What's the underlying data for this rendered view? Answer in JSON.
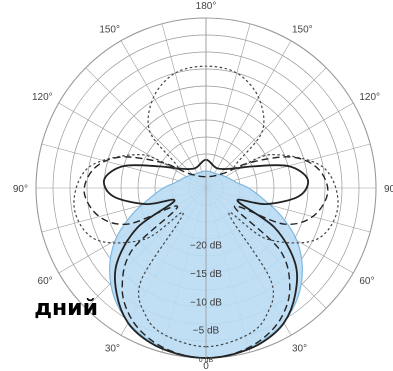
{
  "overlay_text": "дний",
  "chart_data": {
    "type": "polar",
    "angle_labels": [
      {
        "angle": 180,
        "text": "180°"
      },
      {
        "angle": 150,
        "text": "150°"
      },
      {
        "angle": -150,
        "text": "150°"
      },
      {
        "angle": 120,
        "text": "120°"
      },
      {
        "angle": -120,
        "text": "120°"
      },
      {
        "angle": 90,
        "text": "90°"
      },
      {
        "angle": -90,
        "text": "90"
      },
      {
        "angle": 60,
        "text": "60°"
      },
      {
        "angle": -60,
        "text": "60°"
      },
      {
        "angle": 30,
        "text": "30°"
      },
      {
        "angle": -30,
        "text": "30°"
      },
      {
        "angle": 0,
        "text": "0"
      }
    ],
    "db_labels": [
      {
        "db": -20,
        "text": "−20 dB"
      },
      {
        "db": -15,
        "text": "−15 dB"
      },
      {
        "db": -10,
        "text": "−10 dB"
      },
      {
        "db": -5,
        "text": "−5 dB"
      },
      {
        "db": 0,
        "text": "0 dB"
      }
    ],
    "colors": {
      "grid": "#9a9a9a",
      "fill": "#b9dbf3",
      "fill_edge": "#7fb8e0",
      "curve": "#222222"
    },
    "series": [
      {
        "style": "filled",
        "points": [
          [
            0,
            0
          ],
          [
            10,
            -0.3
          ],
          [
            20,
            -1.2
          ],
          [
            30,
            -2.6
          ],
          [
            40,
            -4.8
          ],
          [
            50,
            -7.8
          ],
          [
            60,
            -11.5
          ],
          [
            70,
            -16
          ],
          [
            80,
            -20
          ],
          [
            90,
            -22.5
          ],
          [
            100,
            -24.5
          ],
          [
            120,
            -26
          ],
          [
            150,
            -27
          ],
          [
            180,
            -27
          ],
          [
            -150,
            -27
          ],
          [
            -120,
            -26
          ],
          [
            -100,
            -24.5
          ],
          [
            -90,
            -22.5
          ],
          [
            -80,
            -20
          ],
          [
            -70,
            -16
          ],
          [
            -60,
            -11.5
          ],
          [
            -50,
            -7.8
          ],
          [
            -40,
            -4.8
          ],
          [
            -30,
            -2.6
          ],
          [
            -20,
            -1.2
          ],
          [
            -10,
            -0.3
          ]
        ]
      },
      {
        "style": "solid",
        "points": [
          [
            0,
            0
          ],
          [
            10,
            -0.3
          ],
          [
            20,
            -1
          ],
          [
            30,
            -2.5
          ],
          [
            40,
            -5.5
          ],
          [
            50,
            -9.5
          ],
          [
            60,
            -16
          ],
          [
            68,
            -24
          ],
          [
            75,
            -19
          ],
          [
            85,
            -13.5
          ],
          [
            95,
            -12
          ],
          [
            105,
            -15
          ],
          [
            115,
            -21
          ],
          [
            125,
            -24
          ],
          [
            150,
            -26
          ],
          [
            180,
            -25
          ],
          [
            -150,
            -26
          ],
          [
            -125,
            -24
          ],
          [
            -115,
            -21
          ],
          [
            -105,
            -15
          ],
          [
            -95,
            -12
          ],
          [
            -85,
            -13.5
          ],
          [
            -75,
            -19
          ],
          [
            -68,
            -24
          ],
          [
            -60,
            -16
          ],
          [
            -50,
            -9.5
          ],
          [
            -40,
            -5.5
          ],
          [
            -30,
            -2.5
          ],
          [
            -20,
            -1
          ],
          [
            -10,
            -0.3
          ]
        ]
      },
      {
        "style": "long-dash",
        "points": [
          [
            0,
            0
          ],
          [
            10,
            -0.4
          ],
          [
            20,
            -1.5
          ],
          [
            30,
            -3.5
          ],
          [
            40,
            -7
          ],
          [
            50,
            -13
          ],
          [
            57,
            -24
          ],
          [
            65,
            -15
          ],
          [
            75,
            -10.5
          ],
          [
            88,
            -8.5
          ],
          [
            100,
            -10
          ],
          [
            110,
            -14
          ],
          [
            120,
            -21
          ],
          [
            130,
            -26
          ],
          [
            180,
            -28
          ],
          [
            -130,
            -26
          ],
          [
            -120,
            -21
          ],
          [
            -110,
            -14
          ],
          [
            -100,
            -10
          ],
          [
            -88,
            -8.5
          ],
          [
            -75,
            -10.5
          ],
          [
            -65,
            -15
          ],
          [
            -57,
            -24
          ],
          [
            -50,
            -13
          ],
          [
            -40,
            -7
          ],
          [
            -30,
            -3.5
          ],
          [
            -20,
            -1.5
          ],
          [
            -10,
            -0.4
          ]
        ]
      },
      {
        "style": "dotted",
        "points": [
          [
            0,
            -2
          ],
          [
            15,
            -3
          ],
          [
            25,
            -5
          ],
          [
            35,
            -10
          ],
          [
            42,
            -24
          ],
          [
            50,
            -16
          ],
          [
            65,
            -8.5
          ],
          [
            82,
            -6.5
          ],
          [
            100,
            -9
          ],
          [
            117,
            -17
          ],
          [
            125,
            -24
          ],
          [
            135,
            -16
          ],
          [
            150,
            -11.5
          ],
          [
            165,
            -9
          ],
          [
            180,
            -8.5
          ],
          [
            -165,
            -9
          ],
          [
            -150,
            -11.5
          ],
          [
            -135,
            -16
          ],
          [
            -125,
            -24
          ],
          [
            -117,
            -17
          ],
          [
            -100,
            -9
          ],
          [
            -82,
            -6.5
          ],
          [
            -65,
            -8.5
          ],
          [
            -50,
            -16
          ],
          [
            -42,
            -24
          ],
          [
            -35,
            -10
          ],
          [
            -25,
            -5
          ],
          [
            -15,
            -3
          ]
        ]
      }
    ]
  }
}
